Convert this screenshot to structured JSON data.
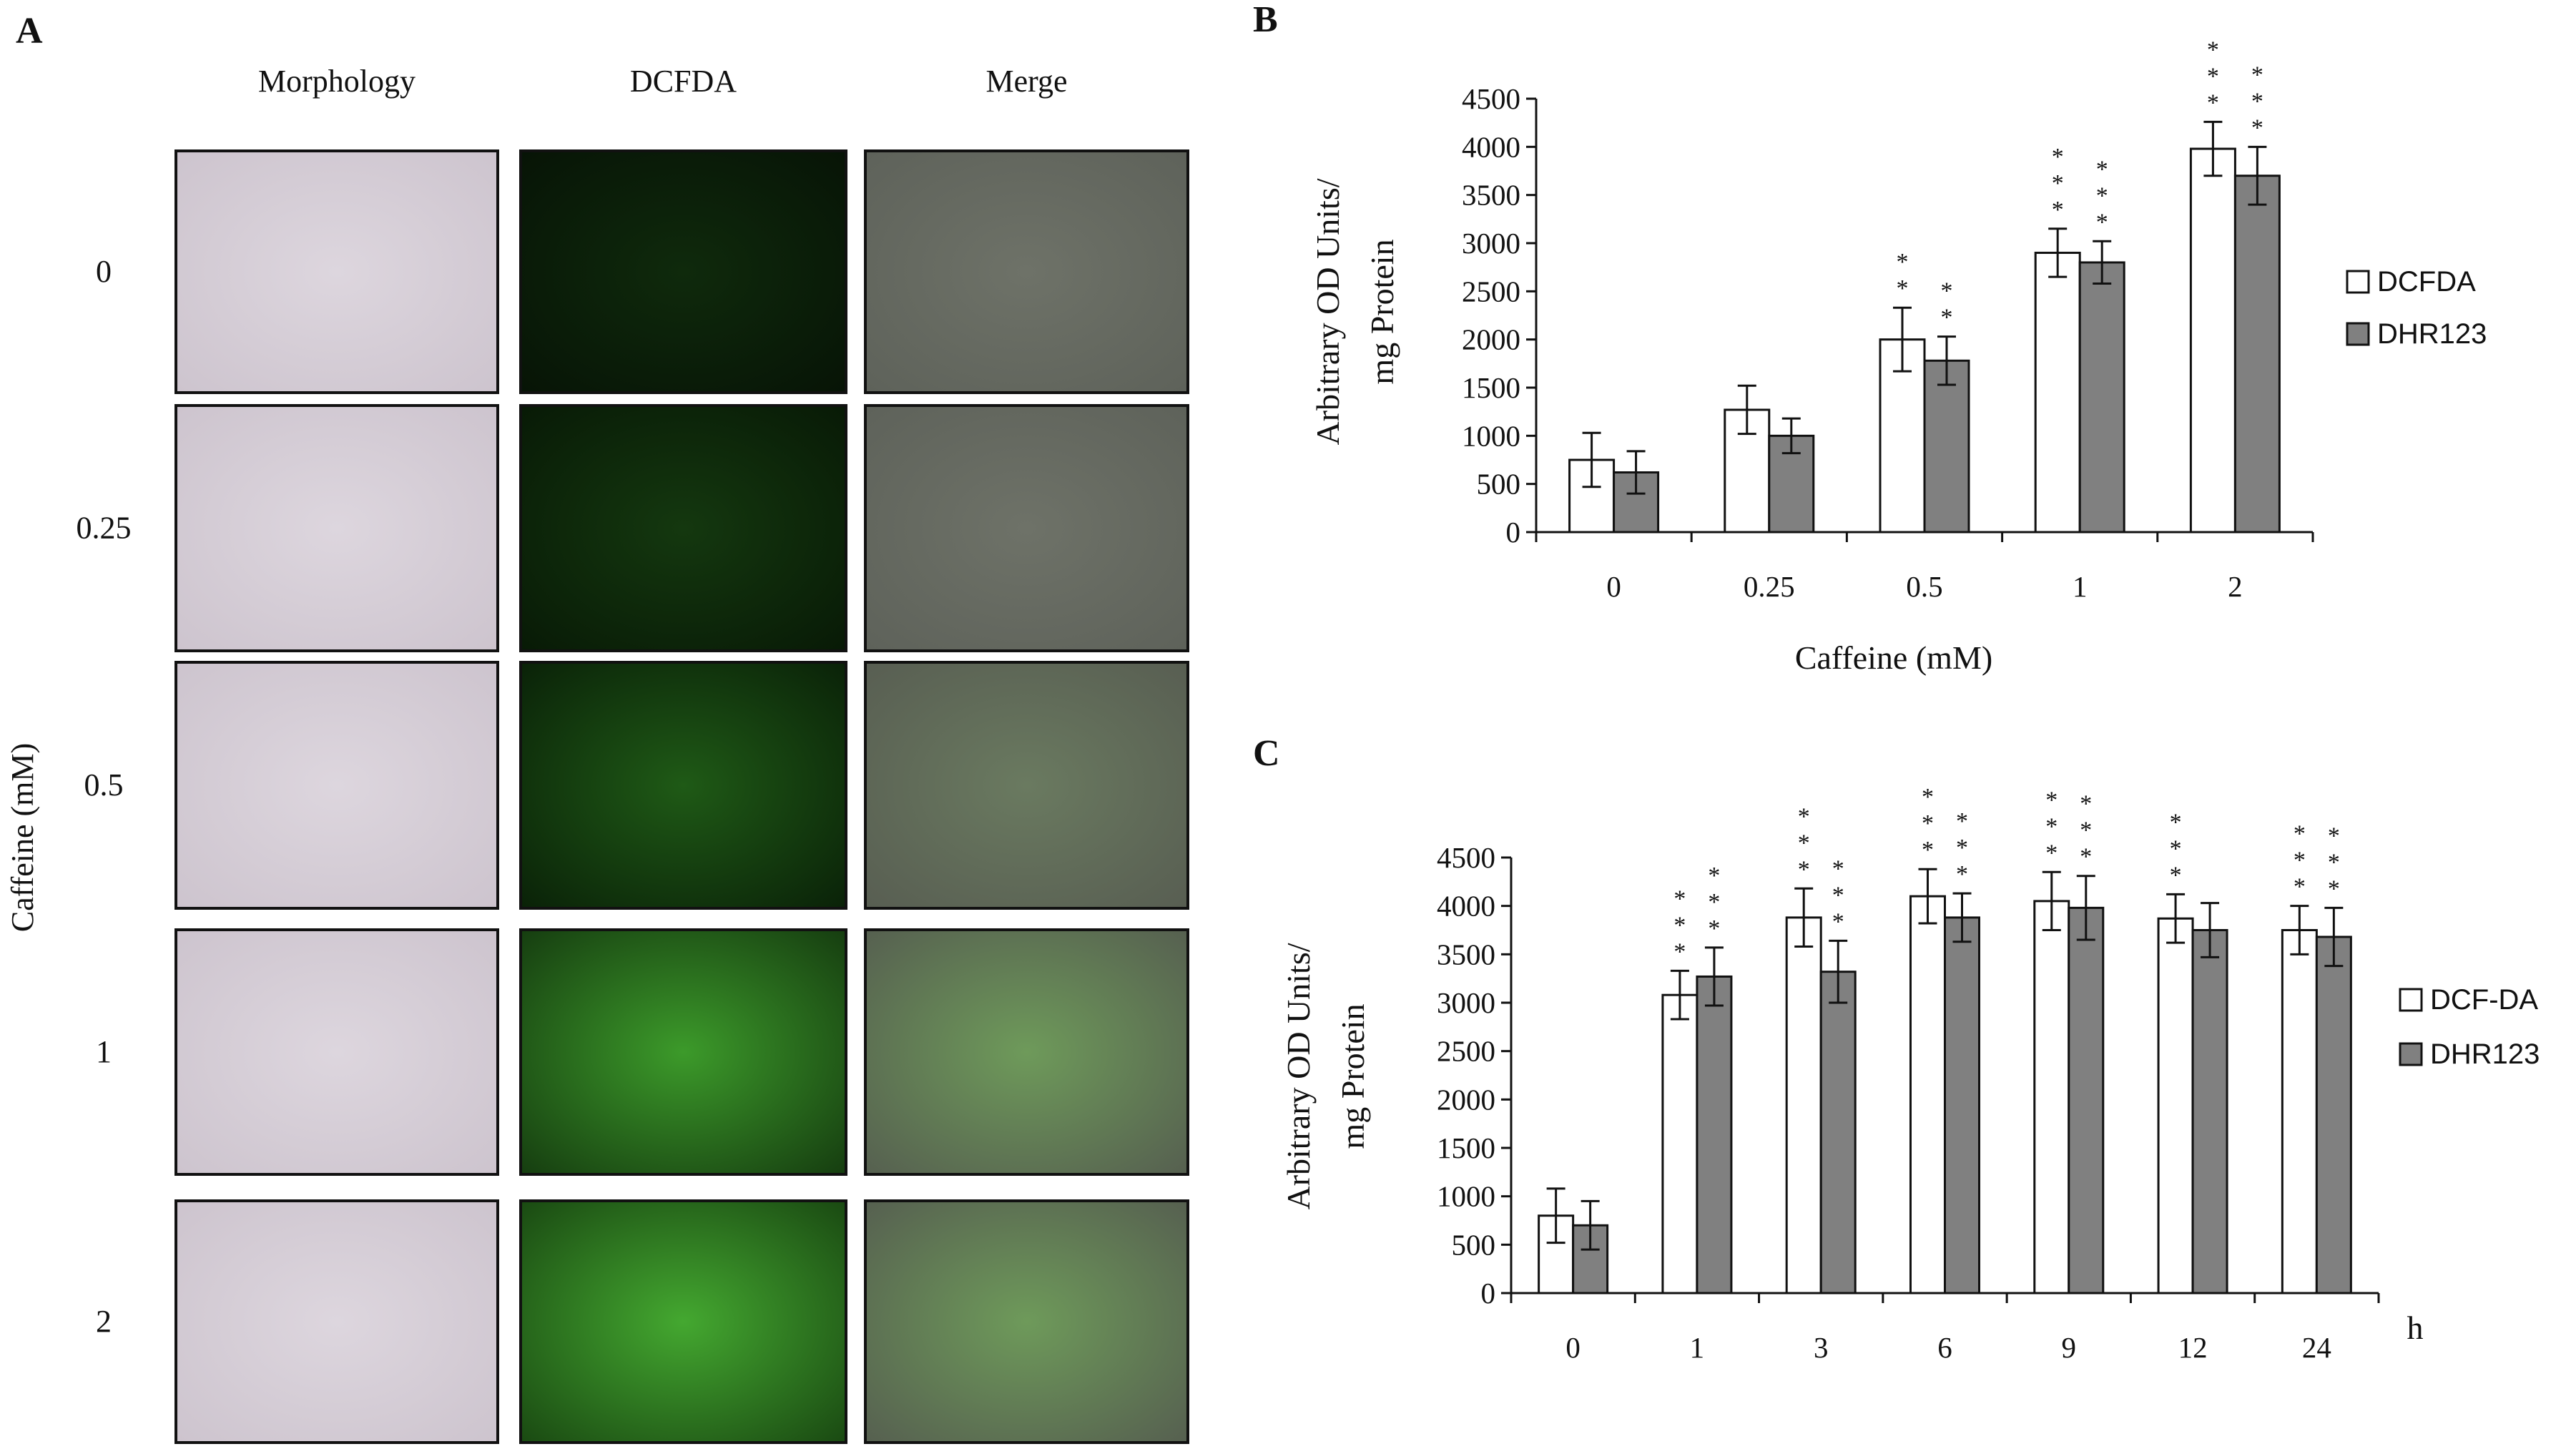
{
  "panel_a": {
    "title": "A",
    "columns": [
      "Morphology",
      "DCFDA",
      "Merge"
    ],
    "rows": [
      "0",
      "0.25",
      "0.5",
      "1",
      "2"
    ],
    "ylabel": "Caffeine (mM)"
  },
  "chart_data": [
    {
      "type": "bar",
      "title": "B",
      "ylabel": [
        "Arbitrary OD Units/",
        "mg Protein"
      ],
      "xlabel": "Caffeine (mM)",
      "xlabel_position": "below",
      "categories": [
        "0",
        "0.25",
        "0.5",
        "1",
        "2"
      ],
      "series": [
        {
          "name": "DCFDA",
          "color": "#ffffff",
          "values": [
            750,
            1270,
            2000,
            2900,
            3980
          ],
          "errors": [
            280,
            250,
            330,
            250,
            280
          ],
          "significance": [
            null,
            null,
            "**",
            "***",
            "***"
          ]
        },
        {
          "name": "DHR123",
          "color": "#808080",
          "values": [
            620,
            1000,
            1780,
            2800,
            3700
          ],
          "errors": [
            220,
            180,
            250,
            220,
            300
          ],
          "significance": [
            null,
            null,
            "**",
            "***",
            "***"
          ]
        }
      ],
      "ylim": [
        0,
        4500
      ],
      "yticks": [
        0,
        500,
        1000,
        1500,
        2000,
        2500,
        3000,
        3500,
        4000,
        4500
      ],
      "grid": false,
      "legend": "right"
    },
    {
      "type": "bar",
      "title": "C",
      "ylabel": [
        "Arbitrary OD Units/",
        "mg Protein"
      ],
      "xlabel": "h",
      "xlabel_position": "end",
      "categories": [
        "0",
        "1",
        "3",
        "6",
        "9",
        "12",
        "24"
      ],
      "series": [
        {
          "name": "DCF-DA",
          "color": "#ffffff",
          "values": [
            800,
            3080,
            3880,
            4100,
            4050,
            3870,
            3750
          ],
          "errors": [
            280,
            250,
            300,
            280,
            300,
            250,
            250
          ],
          "significance": [
            null,
            "***",
            "***",
            "***",
            "***",
            "***",
            "***"
          ]
        },
        {
          "name": "DHR123",
          "color": "#808080",
          "values": [
            700,
            3270,
            3320,
            3880,
            3980,
            3750,
            3680
          ],
          "errors": [
            250,
            300,
            320,
            250,
            330,
            280,
            300
          ],
          "significance": [
            null,
            "***",
            "***",
            "***",
            "***",
            null,
            "***"
          ]
        }
      ],
      "ylim": [
        0,
        4500
      ],
      "yticks": [
        0,
        500,
        1000,
        1500,
        2000,
        2500,
        3000,
        3500,
        4000,
        4500
      ],
      "grid": false,
      "legend": "right"
    }
  ]
}
